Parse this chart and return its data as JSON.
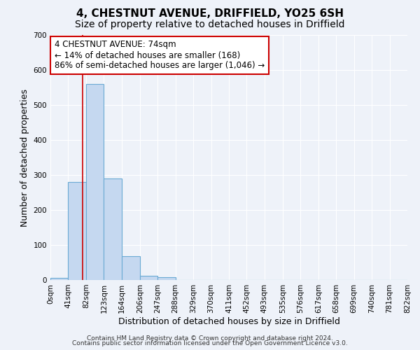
{
  "title": "4, CHESTNUT AVENUE, DRIFFIELD, YO25 6SH",
  "subtitle": "Size of property relative to detached houses in Driffield",
  "xlabel": "Distribution of detached houses by size in Driffield",
  "ylabel": "Number of detached properties",
  "bin_edges": [
    0,
    41,
    82,
    123,
    164,
    206,
    247,
    288,
    329,
    370,
    411,
    452,
    493,
    535,
    576,
    617,
    658,
    699,
    740,
    781,
    822
  ],
  "bin_labels": [
    "0sqm",
    "41sqm",
    "82sqm",
    "123sqm",
    "164sqm",
    "206sqm",
    "247sqm",
    "288sqm",
    "329sqm",
    "370sqm",
    "411sqm",
    "452sqm",
    "493sqm",
    "535sqm",
    "576sqm",
    "617sqm",
    "658sqm",
    "699sqm",
    "740sqm",
    "781sqm",
    "822sqm"
  ],
  "counts": [
    7,
    280,
    560,
    290,
    68,
    13,
    8,
    0,
    0,
    0,
    0,
    0,
    0,
    0,
    0,
    0,
    0,
    0,
    0,
    0
  ],
  "bar_color": "#c5d8f0",
  "bar_edge_color": "#6aaad4",
  "property_line_x": 74,
  "property_line_color": "#cc0000",
  "annotation_line1": "4 CHESTNUT AVENUE: 74sqm",
  "annotation_line2": "← 14% of detached houses are smaller (168)",
  "annotation_line3": "86% of semi-detached houses are larger (1,046) →",
  "annotation_box_color": "#ffffff",
  "annotation_box_edge_color": "#cc0000",
  "ylim": [
    0,
    700
  ],
  "yticks": [
    0,
    100,
    200,
    300,
    400,
    500,
    600,
    700
  ],
  "footer_line1": "Contains HM Land Registry data © Crown copyright and database right 2024.",
  "footer_line2": "Contains public sector information licensed under the Open Government Licence v3.0.",
  "background_color": "#eef2f9",
  "grid_color": "#ffffff",
  "title_fontsize": 11,
  "subtitle_fontsize": 10,
  "axis_label_fontsize": 9,
  "tick_fontsize": 7.5,
  "annotation_fontsize": 8.5,
  "footer_fontsize": 6.5
}
